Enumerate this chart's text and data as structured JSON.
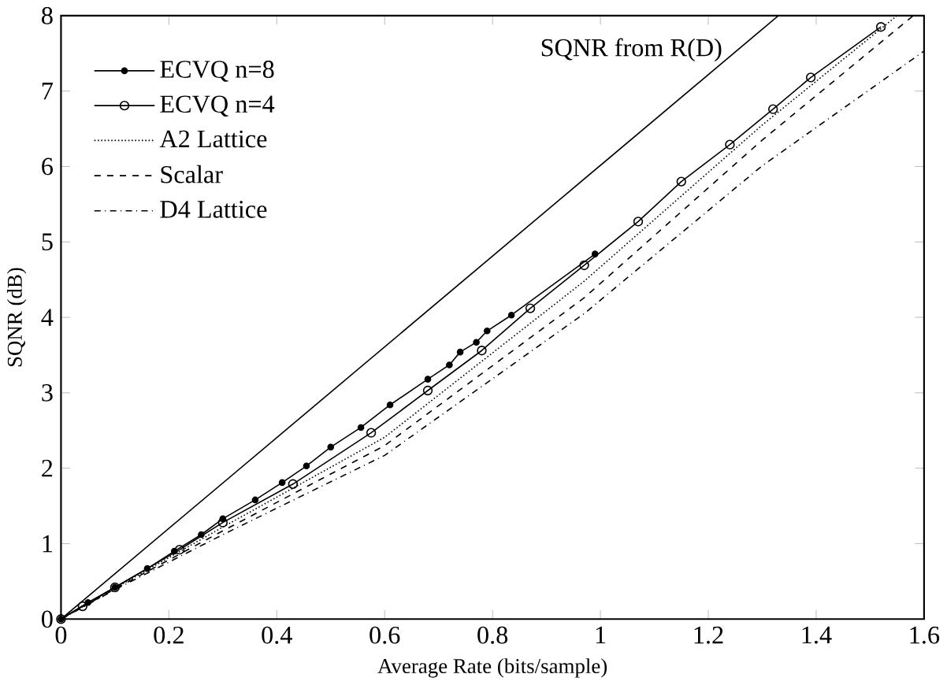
{
  "chart_data": {
    "type": "line",
    "xlabel": "Average Rate (bits/sample)",
    "ylabel": "SQNR (dB)",
    "xlim": [
      0,
      1.6
    ],
    "ylim": [
      0,
      8
    ],
    "xticks": [
      0,
      0.2,
      0.4,
      0.6,
      0.8,
      1,
      1.2,
      1.4,
      1.6
    ],
    "yticks": [
      0,
      1,
      2,
      3,
      4,
      5,
      6,
      7,
      8
    ],
    "grid": false,
    "legend": "top left",
    "series": [
      {
        "name": "SQNR from R(D)",
        "color": "#000000",
        "line_style": "solid",
        "x": [
          0,
          1.33
        ],
        "values": [
          0,
          8
        ]
      },
      {
        "name": "ECVQ n=8",
        "color": "#000000",
        "marker": "circle",
        "line_style": "solid",
        "x": [
          0,
          0.05,
          0.1,
          0.16,
          0.21,
          0.26,
          0.3,
          0.36,
          0.41,
          0.455,
          0.5,
          0.556,
          0.61,
          0.68,
          0.72,
          0.74,
          0.77,
          0.79,
          0.835,
          0.99
        ],
        "values": [
          0,
          0.22,
          0.42,
          0.67,
          0.9,
          1.12,
          1.33,
          1.58,
          1.81,
          2.03,
          2.28,
          2.54,
          2.84,
          3.18,
          3.37,
          3.54,
          3.67,
          3.82,
          4.03,
          4.84
        ]
      },
      {
        "name": "ECVQ n=4",
        "color": "#000000",
        "marker": "o",
        "line_style": "solid",
        "x": [
          0,
          0.04,
          0.1,
          0.22,
          0.3,
          0.43,
          0.575,
          0.68,
          0.78,
          0.87,
          0.97,
          1.07,
          1.15,
          1.24,
          1.32,
          1.39,
          1.52
        ],
        "values": [
          0,
          0.17,
          0.42,
          0.92,
          1.28,
          1.79,
          2.47,
          3.03,
          3.56,
          4.12,
          4.69,
          5.27,
          5.8,
          6.29,
          6.76,
          7.18,
          7.85
        ]
      },
      {
        "name": "A2 Lattice",
        "color": "#000000",
        "marker": "none",
        "line_style": "dotted",
        "x": [
          0,
          0.1,
          0.3,
          0.6,
          0.97,
          1.3,
          1.55
        ],
        "values": [
          0,
          0.41,
          1.22,
          2.41,
          4.48,
          6.55,
          8
        ]
      },
      {
        "name": "Scalar",
        "color": "#000000",
        "marker": "none",
        "line_style": "dashed",
        "x": [
          0,
          0.1,
          0.3,
          0.6,
          0.97,
          1.3,
          1.58
        ],
        "values": [
          0,
          0.4,
          1.17,
          2.3,
          4.26,
          6.35,
          8
        ]
      },
      {
        "name": "D4 Lattice",
        "color": "#000000",
        "marker": "none",
        "line_style": "dashdotted",
        "x": [
          0,
          0.1,
          0.3,
          0.6,
          0.97,
          1.3,
          1.6
        ],
        "values": [
          0,
          0.39,
          1.12,
          2.17,
          4.05,
          6.01,
          7.53
        ]
      }
    ]
  }
}
